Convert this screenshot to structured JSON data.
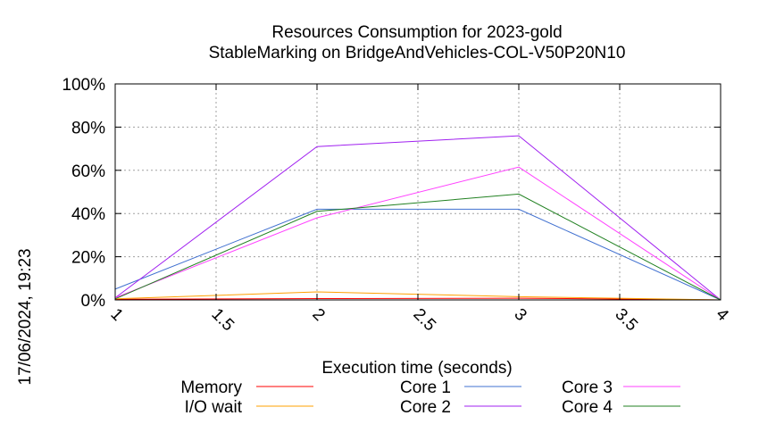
{
  "chart_data": {
    "type": "line",
    "title": "Resources Consumption for 2023-gold",
    "subtitle": "StableMarking on BridgeAndVehicles-COL-V50P20N10",
    "xlabel": "Execution time (seconds)",
    "ylabel": "",
    "timestamp": "17/06/2024, 19:23",
    "xlim": [
      1,
      4
    ],
    "ylim": [
      0,
      100
    ],
    "x_ticks": [
      1,
      1.5,
      2,
      2.5,
      3,
      3.5,
      4
    ],
    "x_tick_labels": [
      "1",
      "1.5",
      "2",
      "2.5",
      "3",
      "3.5",
      "4"
    ],
    "y_ticks": [
      0,
      20,
      40,
      60,
      80,
      100
    ],
    "y_tick_labels": [
      "0%",
      "20%",
      "40%",
      "60%",
      "80%",
      "100%"
    ],
    "grid": true,
    "legend_position": "bottom",
    "series": [
      {
        "name": "Memory",
        "color": "#ff0000",
        "x": [
          1,
          2,
          3,
          4
        ],
        "y": [
          0.3,
          0.6,
          0.8,
          0.0
        ]
      },
      {
        "name": "I/O wait",
        "color": "#ffa000",
        "x": [
          1,
          2,
          3,
          4
        ],
        "y": [
          0.5,
          3.7,
          1.5,
          0.0
        ]
      },
      {
        "name": "Core 1",
        "color": "#4070d0",
        "x": [
          1,
          2,
          3,
          4
        ],
        "y": [
          5.0,
          42.0,
          42.0,
          0.0
        ]
      },
      {
        "name": "Core 2",
        "color": "#a020f0",
        "x": [
          1,
          2,
          3,
          4
        ],
        "y": [
          1.0,
          71.0,
          76.0,
          0.0
        ]
      },
      {
        "name": "Core 3",
        "color": "#ff40ff",
        "x": [
          1,
          2,
          3,
          4
        ],
        "y": [
          1.0,
          38.0,
          61.5,
          0.0
        ]
      },
      {
        "name": "Core 4",
        "color": "#208020",
        "x": [
          1,
          2,
          3,
          4
        ],
        "y": [
          0.5,
          41.0,
          49.0,
          0.0
        ]
      }
    ]
  }
}
